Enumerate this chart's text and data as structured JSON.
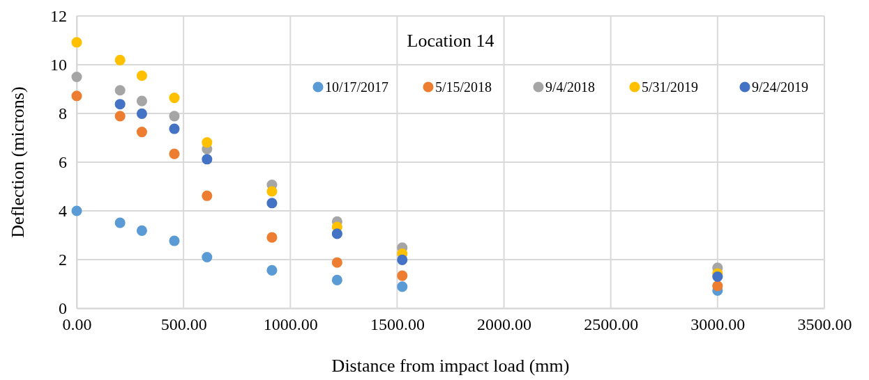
{
  "chart_data": {
    "type": "scatter",
    "title": "Location 14",
    "xlabel": "Distance from impact load (mm)",
    "ylabel": "Deflection (microns)",
    "x": [
      0,
      203,
      305,
      457,
      610,
      914,
      1219,
      1524,
      3000
    ],
    "series": [
      {
        "name": "10/17/2017",
        "color": "#5b9bd5",
        "values": [
          4.0,
          3.51,
          3.19,
          2.77,
          2.1,
          1.56,
          1.16,
          0.89,
          0.73
        ]
      },
      {
        "name": "5/15/2018",
        "color": "#ed7d31",
        "values": [
          8.72,
          7.89,
          7.24,
          6.34,
          4.62,
          2.91,
          1.88,
          1.34,
          0.92
        ]
      },
      {
        "name": "9/4/2018",
        "color": "#a5a5a5",
        "values": [
          9.5,
          8.95,
          8.51,
          7.89,
          6.54,
          5.07,
          3.56,
          2.49,
          1.66
        ]
      },
      {
        "name": "5/31/2019",
        "color": "#ffc000",
        "values": [
          10.92,
          10.19,
          9.55,
          8.64,
          6.81,
          4.8,
          3.34,
          2.24,
          1.43
        ]
      },
      {
        "name": "9/24/2019",
        "color": "#4472c4",
        "values": [
          null,
          8.38,
          7.99,
          7.37,
          6.12,
          4.32,
          3.06,
          1.99,
          1.3
        ]
      }
    ],
    "xlim": [
      0,
      3500
    ],
    "xticks": [
      {
        "value": 0,
        "label": "0.00"
      },
      {
        "value": 500,
        "label": "500.00"
      },
      {
        "value": 1000,
        "label": "1000.00"
      },
      {
        "value": 1500,
        "label": "1500.00"
      },
      {
        "value": 2000,
        "label": "2000.00"
      },
      {
        "value": 2500,
        "label": "2500.00"
      },
      {
        "value": 3000,
        "label": "3000.00"
      },
      {
        "value": 3500,
        "label": "3500.00"
      }
    ],
    "ylim": [
      0,
      12
    ],
    "yticks": [
      0,
      2,
      4,
      6,
      8,
      10,
      12
    ],
    "grid": true,
    "legend": "top right",
    "marker": "circle"
  }
}
